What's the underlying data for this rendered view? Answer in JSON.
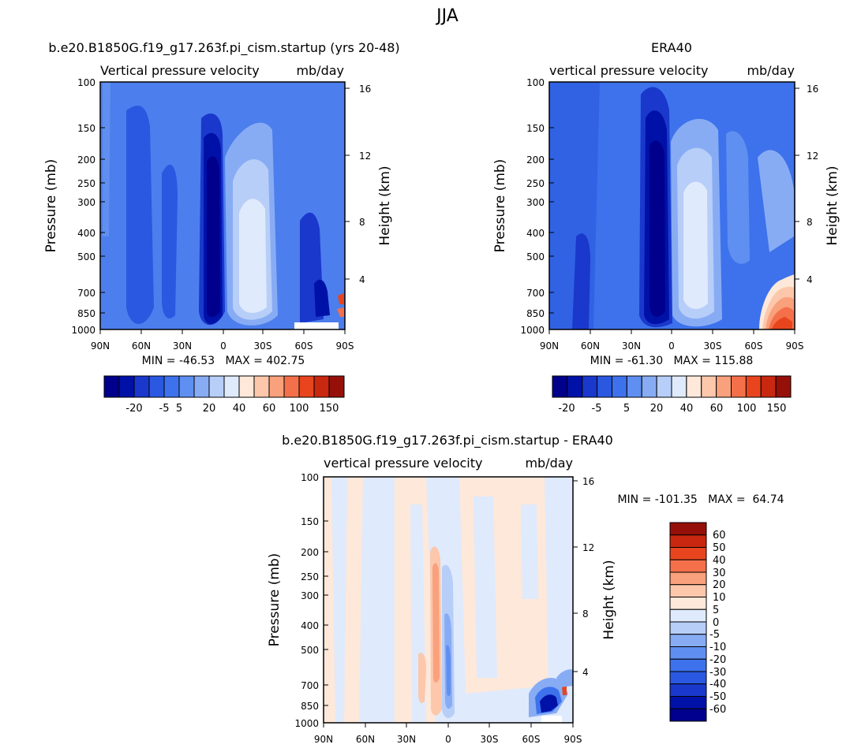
{
  "figure": {
    "title": "JJA"
  },
  "palettes": {
    "full": [
      "#00008c",
      "#0011a8",
      "#1a38cc",
      "#2a58e0",
      "#3d72ec",
      "#5f8ff0",
      "#88acf4",
      "#b7cef8",
      "#dfeafc",
      "#fde8da",
      "#fcc7ab",
      "#f9a07c",
      "#f4704a",
      "#e8451e",
      "#c82810",
      "#96100a"
    ],
    "diff": [
      "#96100a",
      "#c82810",
      "#e8451e",
      "#f4704a",
      "#f9a07c",
      "#fcc7ab",
      "#fde8da",
      "#dfeafc",
      "#b7cef8",
      "#88acf4",
      "#5f8ff0",
      "#3d72ec",
      "#2a58e0",
      "#1a38cc",
      "#0011a8",
      "#00008c"
    ]
  },
  "chart_data": [
    {
      "type": "heatmap",
      "title": "b.e20.B1850G.f19_g17.263f.pi_cism.startup (yrs 20-48)",
      "left_title": "Vertical pressure velocity",
      "right_title": "mb/day",
      "xlabel": "",
      "ylabel": "Pressure (mb)",
      "ylabel_right": "Height (km)",
      "x_ticks": [
        "90N",
        "60N",
        "30N",
        "0",
        "30S",
        "60S",
        "90S"
      ],
      "y_ticks": [
        "100",
        "150",
        "200",
        "250",
        "300",
        "400",
        "500",
        "700",
        "850",
        "1000"
      ],
      "y_right_ticks": [
        "16",
        "12",
        "8",
        "4"
      ],
      "stats": "MIN = -46.53   MAX = 402.75",
      "colorbar_labels": [
        "-20",
        "-5",
        "5",
        "20",
        "40",
        "60",
        "100",
        "150"
      ],
      "colorbar_orientation": "horizontal"
    },
    {
      "type": "heatmap",
      "title": "ERA40",
      "left_title": "vertical pressure velocity",
      "right_title": "mb/day",
      "xlabel": "",
      "ylabel": "Pressure (mb)",
      "ylabel_right": "Height (km)",
      "x_ticks": [
        "90N",
        "60N",
        "30N",
        "0",
        "30S",
        "60S",
        "90S"
      ],
      "y_ticks": [
        "100",
        "150",
        "200",
        "250",
        "300",
        "400",
        "500",
        "700",
        "850",
        "1000"
      ],
      "y_right_ticks": [
        "16",
        "12",
        "8",
        "4"
      ],
      "stats": "MIN = -61.30   MAX = 115.88",
      "colorbar_labels": [
        "-20",
        "-5",
        "5",
        "20",
        "40",
        "60",
        "100",
        "150"
      ],
      "colorbar_orientation": "horizontal"
    },
    {
      "type": "heatmap",
      "title": "b.e20.B1850G.f19_g17.263f.pi_cism.startup - ERA40",
      "left_title": "vertical pressure velocity",
      "right_title": "mb/day",
      "xlabel": "",
      "ylabel": "Pressure (mb)",
      "ylabel_right": "Height (km)",
      "x_ticks": [
        "90N",
        "60N",
        "30N",
        "0",
        "30S",
        "60S",
        "90S"
      ],
      "y_ticks": [
        "100",
        "150",
        "200",
        "250",
        "300",
        "400",
        "500",
        "700",
        "850",
        "1000"
      ],
      "y_right_ticks": [
        "16",
        "12",
        "8",
        "4"
      ],
      "stats": "MIN = -101.35   MAX =  64.74",
      "colorbar_labels": [
        "60",
        "50",
        "40",
        "30",
        "20",
        "10",
        "5",
        "0",
        "-5",
        "-10",
        "-20",
        "-30",
        "-40",
        "-50",
        "-60"
      ],
      "colorbar_orientation": "vertical"
    }
  ]
}
